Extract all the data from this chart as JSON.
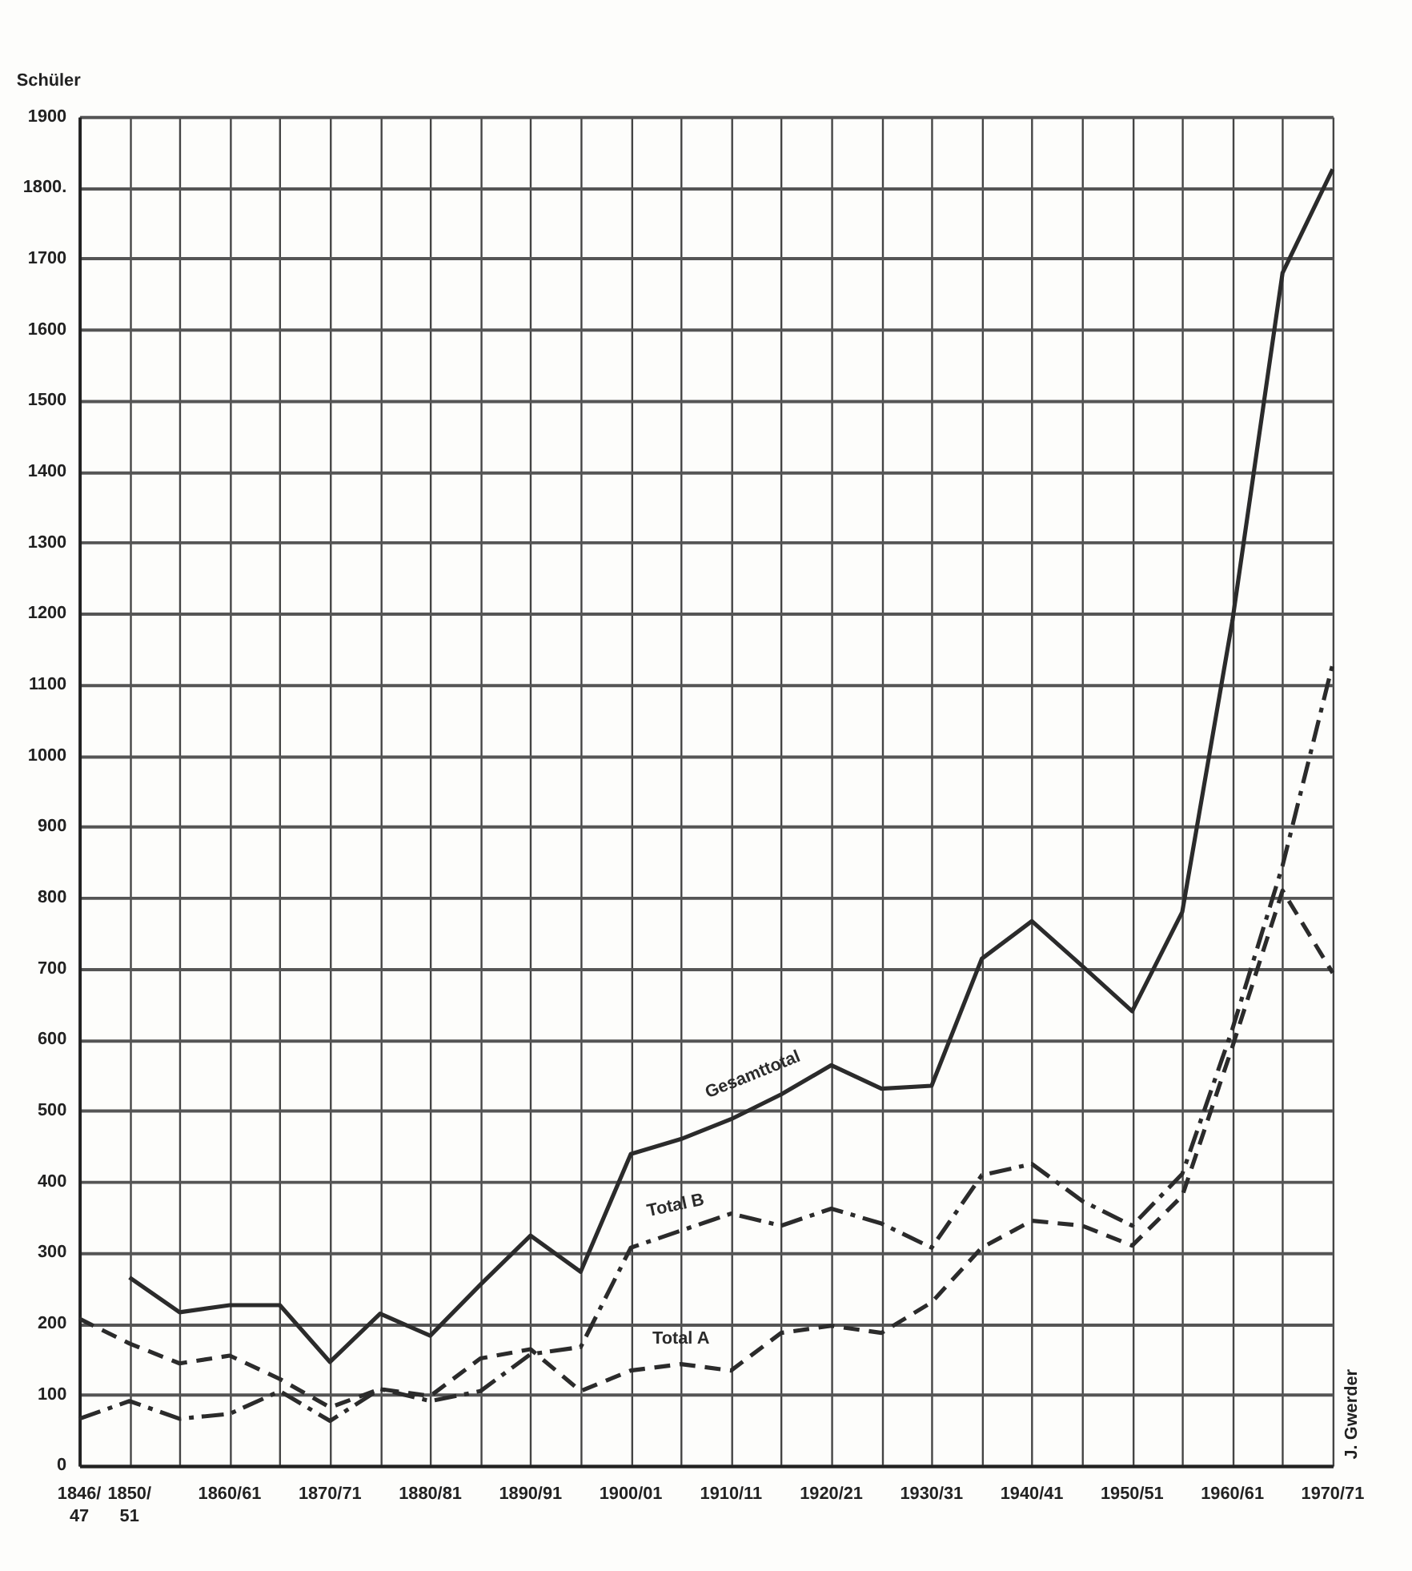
{
  "chart_data": {
    "type": "line",
    "ylabel": "Schüler",
    "categories": [
      "1846/ 47",
      "1850/ 51",
      null,
      "1860/61",
      null,
      "1870/71",
      null,
      "1880/81",
      null,
      "1890/91",
      null,
      "1900/01",
      null,
      "1910/11",
      null,
      "1920/21",
      null,
      "1930/31",
      null,
      "1940/41",
      null,
      "1950/51",
      null,
      "1960/61",
      null,
      "1970/71"
    ],
    "series": [
      {
        "name": "Gesamttotal",
        "color": "#2b2b2b",
        "line_style": "solid",
        "values": [
          null,
          265,
          216,
          226,
          226,
          146,
          214,
          183,
          255,
          324,
          273,
          439,
          460,
          488,
          523,
          564,
          531,
          535,
          714,
          767,
          704,
          640,
          780,
          1190,
          1680,
          1826
        ]
      },
      {
        "name": "Total B",
        "color": "#2b2b2b",
        "line_style": "dashdot",
        "values": [
          66,
          91,
          66,
          73,
          105,
          63,
          108,
          91,
          105,
          157,
          167,
          307,
          331,
          355,
          338,
          362,
          341,
          307,
          409,
          425,
          373,
          338,
          411,
          615,
          845,
          1129
        ]
      },
      {
        "name": "Total A",
        "color": "#2b2b2b",
        "line_style": "dashed",
        "values": [
          207,
          172,
          144,
          155,
          122,
          82,
          108,
          98,
          151,
          164,
          105,
          134,
          143,
          134,
          187,
          197,
          187,
          230,
          307,
          345,
          338,
          310,
          380,
          590,
          810,
          694
        ]
      }
    ],
    "ylim": [
      0,
      1900
    ],
    "yticks": [
      0,
      100,
      200,
      300,
      400,
      500,
      600,
      700,
      800,
      900,
      1000,
      1100,
      1200,
      1300,
      1400,
      1500,
      1600,
      1700,
      {
        "value": 1800,
        "label": "1800."
      },
      1900
    ],
    "grid": true,
    "marker": "none",
    "annotations": [
      "J. Gwerder"
    ]
  }
}
